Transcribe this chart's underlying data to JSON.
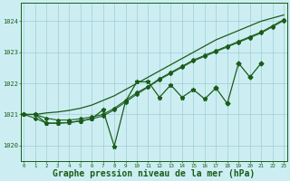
{
  "bg_color": "#cceef2",
  "grid_color": "#9ecdd4",
  "line_color": "#1a5c1a",
  "title": "Graphe pression niveau de la mer (hPa)",
  "title_fontsize": 7.0,
  "ylim": [
    1019.5,
    1024.6
  ],
  "yticks": [
    1020,
    1021,
    1022,
    1023,
    1024
  ],
  "xlim": [
    -0.3,
    23.3
  ],
  "series": {
    "smooth_upper": {
      "x": [
        0,
        1,
        2,
        3,
        4,
        5,
        6,
        7,
        8,
        9,
        10,
        11,
        12,
        13,
        14,
        15,
        16,
        17,
        18,
        19,
        20,
        21,
        22,
        23
      ],
      "y": [
        1021.0,
        1021.0,
        1021.05,
        1021.08,
        1021.13,
        1021.2,
        1021.3,
        1021.45,
        1021.6,
        1021.8,
        1022.0,
        1022.2,
        1022.4,
        1022.6,
        1022.8,
        1023.0,
        1023.2,
        1023.4,
        1023.55,
        1023.7,
        1023.85,
        1024.0,
        1024.1,
        1024.2
      ],
      "marker": null,
      "lw": 0.9
    },
    "smooth_mid1": {
      "x": [
        0,
        1,
        2,
        3,
        4,
        5,
        6,
        7,
        8,
        9,
        10,
        11,
        12,
        13,
        14,
        15,
        16,
        17,
        18,
        19,
        20,
        21,
        22,
        23
      ],
      "y": [
        1021.0,
        1021.0,
        1020.88,
        1020.82,
        1020.82,
        1020.86,
        1020.92,
        1021.0,
        1021.2,
        1021.45,
        1021.7,
        1021.9,
        1022.15,
        1022.35,
        1022.55,
        1022.75,
        1022.9,
        1023.05,
        1023.2,
        1023.35,
        1023.5,
        1023.65,
        1023.85,
        1024.05
      ],
      "marker": "D",
      "markersize": 2.0,
      "lw": 0.8
    },
    "smooth_mid2": {
      "x": [
        0,
        1,
        2,
        3,
        4,
        5,
        6,
        7,
        8,
        9,
        10,
        11,
        12,
        13,
        14,
        15,
        16,
        17,
        18,
        19,
        20,
        21,
        22,
        23
      ],
      "y": [
        1021.0,
        1020.88,
        1020.72,
        1020.72,
        1020.74,
        1020.79,
        1020.86,
        1020.95,
        1021.15,
        1021.4,
        1021.65,
        1021.88,
        1022.12,
        1022.32,
        1022.52,
        1022.72,
        1022.87,
        1023.02,
        1023.17,
        1023.32,
        1023.47,
        1023.62,
        1023.82,
        1024.02
      ],
      "marker": "D",
      "markersize": 2.0,
      "lw": 0.8
    },
    "noisy": {
      "x": [
        0,
        1,
        2,
        3,
        4,
        5,
        6,
        7,
        8,
        9,
        10,
        11,
        12,
        13,
        14,
        15,
        16,
        17
      ],
      "y": [
        1021.0,
        1021.0,
        1020.72,
        1020.72,
        1020.74,
        1020.79,
        1020.86,
        1021.15,
        1019.98,
        1021.42,
        1022.05,
        1022.05,
        1021.55,
        1021.95,
        1021.55,
        1021.8,
        1021.5,
        1021.85
      ],
      "marker": "*",
      "markersize": 3.5,
      "lw": 0.9
    },
    "noisy2": {
      "x": [
        17,
        18,
        19,
        20,
        21
      ],
      "y": [
        1021.85,
        1021.35,
        1022.65,
        1022.2,
        1022.65
      ],
      "marker": "D",
      "markersize": 2.5,
      "lw": 0.9
    }
  }
}
